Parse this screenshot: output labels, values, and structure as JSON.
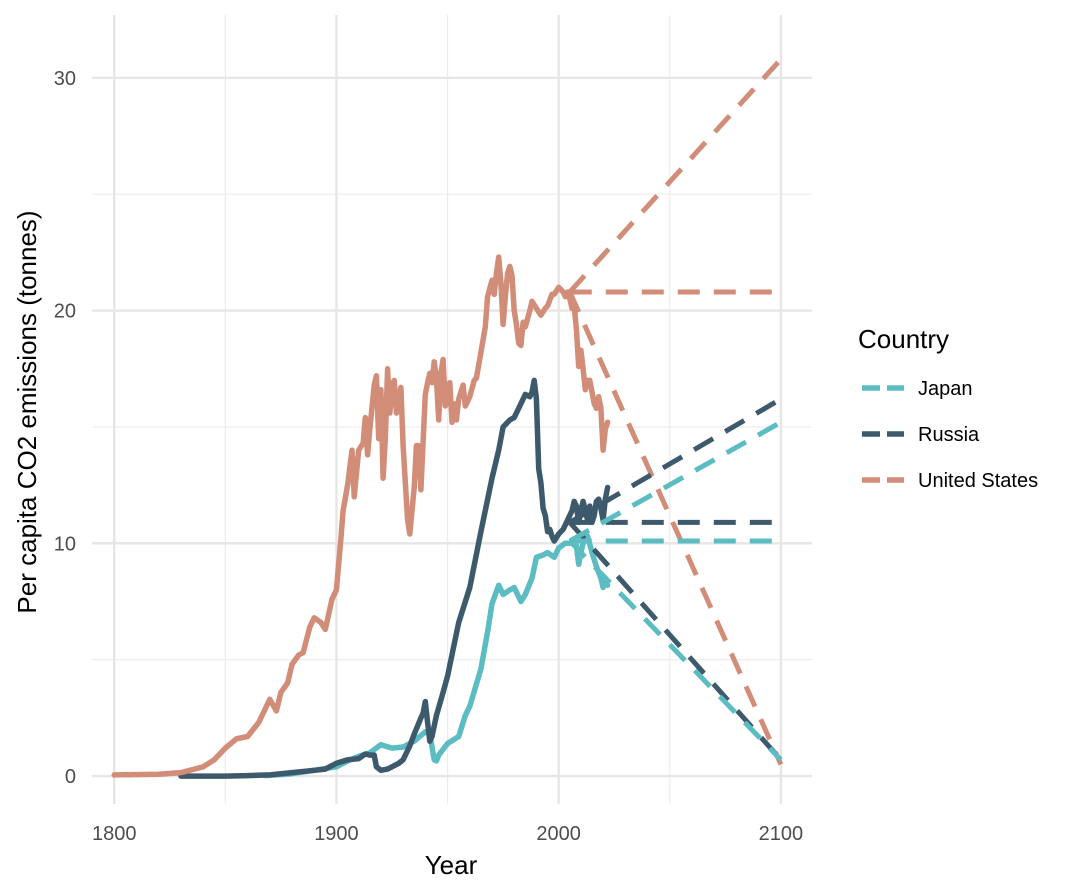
{
  "chart_data": {
    "type": "line",
    "title": "",
    "xlabel": "Year",
    "ylabel": "Per capita CO2 emissions (tonnes)",
    "xlim": [
      1790,
      2114
    ],
    "ylim": [
      -1.2,
      32.7
    ],
    "x_ticks": [
      1800,
      1900,
      2000,
      2100
    ],
    "x_tick_labels": [
      "1800",
      "1900",
      "2000",
      "2100"
    ],
    "x_minor_ticks": [
      1850,
      1950,
      2050
    ],
    "y_ticks": [
      0,
      10,
      20,
      30
    ],
    "y_tick_labels": [
      "0",
      "10",
      "20",
      "30"
    ],
    "y_minor_ticks": [
      5,
      15,
      25
    ],
    "grid": true,
    "legend": {
      "title": "Country",
      "position": "right",
      "line_style": "dashed"
    },
    "series": [
      {
        "name": "Japan",
        "color": "#5bbcc2",
        "x": [
          1868,
          1880,
          1890,
          1900,
          1905,
          1910,
          1915,
          1920,
          1925,
          1930,
          1935,
          1940,
          1942,
          1944,
          1945,
          1946,
          1950,
          1955,
          1958,
          1960,
          1965,
          1968,
          1970,
          1973,
          1975,
          1978,
          1980,
          1983,
          1985,
          1988,
          1990,
          1993,
          1995,
          1998,
          2000,
          2003,
          2005,
          2007,
          2008,
          2009,
          2010,
          2011,
          2012,
          2013,
          2015,
          2017,
          2019,
          2020,
          2021,
          2022
        ],
        "values": [
          0.02,
          0.1,
          0.25,
          0.4,
          0.65,
          0.85,
          1.0,
          1.35,
          1.2,
          1.25,
          1.5,
          1.9,
          1.8,
          0.7,
          0.65,
          0.9,
          1.4,
          1.7,
          2.6,
          3.0,
          4.6,
          6.2,
          7.4,
          8.2,
          7.8,
          8.0,
          8.1,
          7.5,
          7.8,
          8.5,
          9.4,
          9.5,
          9.6,
          9.4,
          9.8,
          10.0,
          10.0,
          10.1,
          9.9,
          9.1,
          9.6,
          10.0,
          10.3,
          10.3,
          9.6,
          9.0,
          8.5,
          8.1,
          8.4,
          8.2
        ]
      },
      {
        "name": "Russia",
        "color": "#3d5a6c",
        "x": [
          1830,
          1850,
          1860,
          1870,
          1880,
          1890,
          1895,
          1900,
          1905,
          1910,
          1913,
          1915,
          1917,
          1918,
          1920,
          1923,
          1925,
          1928,
          1930,
          1933,
          1935,
          1938,
          1939,
          1940,
          1941,
          1942,
          1943,
          1945,
          1948,
          1950,
          1955,
          1960,
          1965,
          1970,
          1973,
          1975,
          1978,
          1980,
          1983,
          1985,
          1987,
          1988,
          1989,
          1990,
          1991,
          1992,
          1993,
          1994,
          1995,
          1996,
          1997,
          1998,
          2000,
          2002,
          2004,
          2006,
          2007,
          2008,
          2009,
          2010,
          2011,
          2012,
          2013,
          2014,
          2015,
          2016,
          2017,
          2018,
          2019,
          2020,
          2021,
          2022
        ],
        "values": [
          0,
          0,
          0.02,
          0.05,
          0.15,
          0.25,
          0.3,
          0.55,
          0.7,
          0.75,
          0.95,
          0.9,
          0.9,
          0.4,
          0.25,
          0.3,
          0.4,
          0.55,
          0.7,
          1.3,
          1.8,
          2.5,
          2.7,
          3.2,
          2.3,
          1.5,
          1.7,
          2.6,
          3.6,
          4.3,
          6.6,
          8.1,
          10.5,
          12.8,
          14.0,
          15.0,
          15.3,
          15.4,
          16.0,
          16.4,
          16.3,
          16.5,
          17.0,
          16.2,
          13.2,
          12.6,
          11.5,
          11.2,
          10.5,
          10.6,
          10.3,
          10.1,
          10.4,
          10.6,
          11.0,
          11.4,
          11.8,
          11.6,
          10.9,
          11.4,
          11.8,
          11.4,
          11.0,
          11.6,
          10.9,
          11.2,
          11.8,
          11.9,
          11.5,
          11.0,
          11.9,
          12.4
        ]
      },
      {
        "name": "United States",
        "color": "#d28d78",
        "x": [
          1800,
          1820,
          1830,
          1840,
          1845,
          1850,
          1855,
          1860,
          1865,
          1870,
          1873,
          1875,
          1878,
          1880,
          1883,
          1885,
          1888,
          1890,
          1893,
          1895,
          1898,
          1900,
          1902,
          1903,
          1905,
          1907,
          1908,
          1910,
          1912,
          1913,
          1914,
          1915,
          1917,
          1918,
          1919,
          1920,
          1921,
          1922,
          1923,
          1924,
          1925,
          1926,
          1927,
          1928,
          1929,
          1930,
          1932,
          1933,
          1935,
          1936,
          1937,
          1938,
          1940,
          1941,
          1942,
          1943,
          1944,
          1945,
          1946,
          1947,
          1948,
          1949,
          1950,
          1951,
          1952,
          1953,
          1954,
          1955,
          1957,
          1958,
          1960,
          1962,
          1963,
          1965,
          1967,
          1968,
          1970,
          1971,
          1972,
          1973,
          1974,
          1975,
          1976,
          1977,
          1978,
          1979,
          1980,
          1981,
          1982,
          1983,
          1984,
          1985,
          1987,
          1988,
          1990,
          1992,
          1994,
          1995,
          1997,
          1998,
          2000,
          2001,
          2002,
          2003,
          2004,
          2005,
          2006,
          2007,
          2008,
          2009,
          2010,
          2011,
          2012,
          2013,
          2014,
          2015,
          2016,
          2017,
          2018,
          2019,
          2020,
          2021,
          2022
        ],
        "values": [
          0.05,
          0.08,
          0.15,
          0.4,
          0.7,
          1.2,
          1.6,
          1.7,
          2.3,
          3.3,
          2.8,
          3.6,
          4.0,
          4.8,
          5.2,
          5.3,
          6.4,
          6.8,
          6.6,
          6.3,
          7.6,
          8.0,
          10.2,
          11.4,
          12.5,
          14.0,
          12.0,
          14.0,
          14.3,
          15.4,
          13.8,
          14.9,
          16.8,
          17.2,
          14.5,
          16.6,
          12.8,
          14.5,
          17.5,
          15.6,
          16.8,
          17.0,
          15.6,
          16.2,
          16.7,
          14.2,
          11.0,
          10.4,
          12.4,
          14.2,
          14.2,
          12.3,
          16.4,
          16.9,
          17.3,
          16.9,
          17.8,
          17.1,
          15.3,
          17.3,
          17.9,
          15.9,
          16.4,
          16.9,
          15.2,
          16.0,
          15.3,
          16.2,
          16.8,
          15.9,
          16.3,
          17.0,
          17.1,
          18.2,
          19.3,
          20.6,
          21.3,
          20.7,
          21.6,
          22.3,
          21.2,
          19.4,
          20.6,
          21.6,
          21.9,
          21.5,
          20.0,
          19.4,
          18.6,
          18.5,
          19.5,
          19.3,
          20.0,
          20.4,
          20.1,
          19.8,
          20.1,
          20.2,
          20.7,
          20.7,
          21.0,
          20.9,
          20.8,
          20.6,
          20.8,
          20.5,
          20.1,
          20.2,
          19.2,
          17.6,
          18.3,
          17.5,
          16.6,
          17.0,
          17.0,
          16.5,
          16.0,
          15.8,
          16.3,
          15.8,
          14.0,
          14.9,
          15.2
        ]
      }
    ],
    "projections": [
      {
        "name": "United States",
        "color": "#d28d78",
        "lines": [
          {
            "x": [
              2005,
              2100
            ],
            "values": [
              20.8,
              30.8
            ]
          },
          {
            "x": [
              2005,
              2100
            ],
            "values": [
              20.8,
              20.8
            ]
          },
          {
            "x": [
              2005,
              2100
            ],
            "values": [
              20.8,
              0.5
            ]
          }
        ]
      },
      {
        "name": "Russia",
        "color": "#3d5a6c",
        "lines": [
          {
            "x": [
              2005,
              2100
            ],
            "values": [
              10.9,
              16.2
            ]
          },
          {
            "x": [
              2005,
              2100
            ],
            "values": [
              10.9,
              10.9
            ]
          },
          {
            "x": [
              2005,
              2100
            ],
            "values": [
              10.9,
              0.7
            ]
          }
        ]
      },
      {
        "name": "Japan",
        "color": "#5bbcc2",
        "lines": [
          {
            "x": [
              2005,
              2100
            ],
            "values": [
              10.1,
              15.2
            ]
          },
          {
            "x": [
              2005,
              2100
            ],
            "values": [
              10.1,
              10.1
            ]
          },
          {
            "x": [
              2005,
              2100
            ],
            "values": [
              10.1,
              0.7
            ]
          }
        ]
      }
    ]
  }
}
